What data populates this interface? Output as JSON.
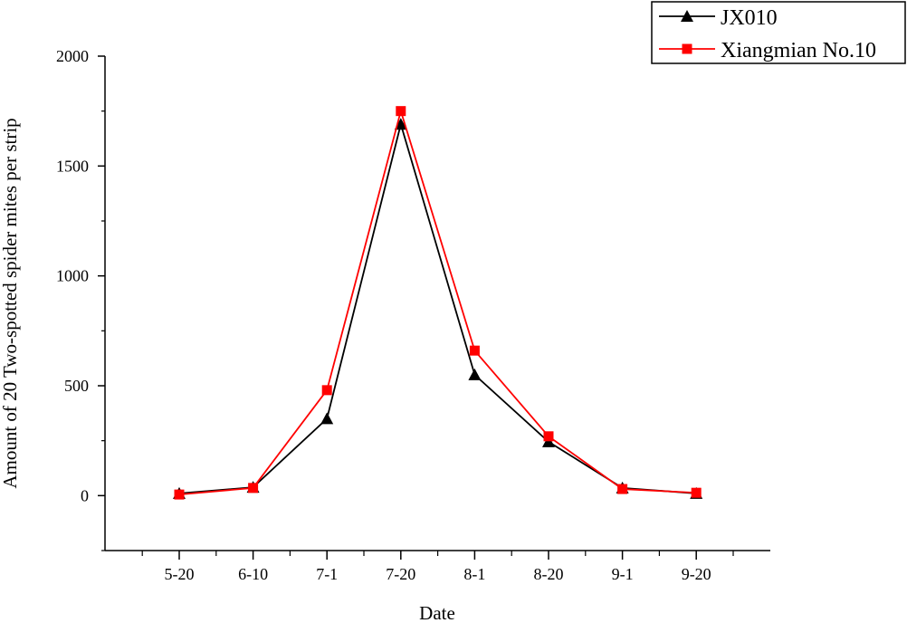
{
  "chart_data": {
    "type": "line",
    "categories": [
      "5-20",
      "6-10",
      "7-1",
      "7-20",
      "8-1",
      "8-20",
      "9-1",
      "9-20"
    ],
    "series": [
      {
        "name": "JX010",
        "color": "#000000",
        "marker": "triangle",
        "values": [
          10,
          38,
          350,
          1690,
          550,
          245,
          35,
          10
        ]
      },
      {
        "name": "Xiangmian No.10",
        "color": "#ff0000",
        "marker": "square",
        "values": [
          5,
          35,
          480,
          1750,
          660,
          270,
          30,
          13
        ]
      }
    ],
    "xlabel": "Date",
    "ylabel": "Amount of 20 Two-spotted spider mites per strip",
    "yticks": [
      0,
      500,
      1000,
      1500,
      2000
    ],
    "ylim": [
      -250,
      2000
    ],
    "grid": false,
    "legend_position": "top-right"
  }
}
